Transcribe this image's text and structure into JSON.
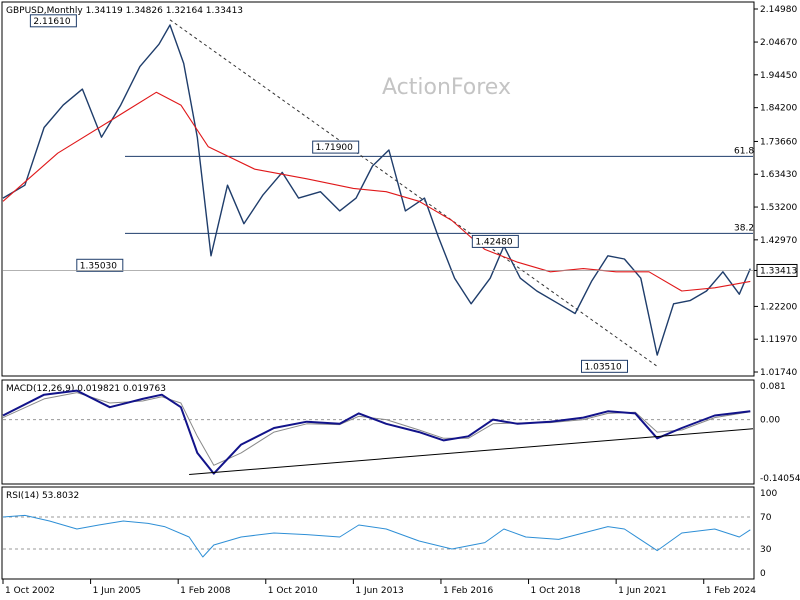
{
  "header": {
    "main": "GBPUSD,Monthly  1.34119 1.34826 1.32164 1.33413",
    "macd": "MACD(12,26,9) 0.019821 0.019763",
    "rsi": "RSI(14) 53.8032"
  },
  "watermark": "ActionForex",
  "colors": {
    "price": "#1f3d6b",
    "ma": "#e0181a",
    "macd": "#12138a",
    "signal": "#8a8a8a",
    "rsi": "#2e8fd6",
    "fib_line": "#1f3d6b",
    "box_border": "#1f3d6b"
  },
  "chart_data": [
    {
      "type": "line",
      "panel": "price",
      "title": "GBPUSD,Monthly",
      "ohlc_last": {
        "open": "1.34119",
        "high": "1.34826",
        "low": "1.32164",
        "close": "1.33413"
      },
      "ylim": [
        1.0174,
        2.1498
      ],
      "y_ticks": [
        "2.14980",
        "2.04670",
        "1.94450",
        "1.84200",
        "1.73660",
        "1.63430",
        "1.53200",
        "1.42970",
        "1.33413",
        "1.22200",
        "1.11970",
        "1.01740"
      ],
      "y_tick_values": [
        2.1498,
        2.0467,
        1.9445,
        1.842,
        1.7366,
        1.6343,
        1.532,
        1.4297,
        1.3341,
        1.222,
        1.1197,
        1.0174
      ],
      "current_price": "1.33413",
      "series": [
        {
          "name": "",
          "x": [
            "2002-10",
            "2003-06",
            "2004-01",
            "2004-08",
            "2005-03",
            "2005-10",
            "2006-05",
            "2006-12",
            "2007-07",
            "2007-11",
            "2008-04",
            "2008-09",
            "2009-02",
            "2009-08",
            "2010-02",
            "2010-09",
            "2011-04",
            "2011-10",
            "2012-06",
            "2013-01",
            "2013-07",
            "2014-01",
            "2014-07",
            "2015-01",
            "2015-08",
            "2016-01",
            "2016-07",
            "2017-01",
            "2017-08",
            "2018-01",
            "2018-07",
            "2019-01",
            "2019-09",
            "2020-03",
            "2020-09",
            "2021-03",
            "2021-09",
            "2022-03",
            "2022-09",
            "2023-03",
            "2023-09",
            "2024-03",
            "2024-09",
            "2025-03",
            "2025-07"
          ],
          "values": [
            1.56,
            1.6,
            1.78,
            1.85,
            1.9,
            1.75,
            1.85,
            1.97,
            2.04,
            2.1,
            1.98,
            1.75,
            1.38,
            1.6,
            1.48,
            1.57,
            1.64,
            1.56,
            1.58,
            1.52,
            1.56,
            1.66,
            1.71,
            1.52,
            1.56,
            1.44,
            1.31,
            1.23,
            1.31,
            1.41,
            1.31,
            1.27,
            1.23,
            1.2,
            1.3,
            1.38,
            1.37,
            1.31,
            1.07,
            1.23,
            1.24,
            1.27,
            1.33,
            1.26,
            1.34
          ]
        },
        {
          "name": "",
          "x": [
            "2002-10",
            "2004-06",
            "2006-01",
            "2007-06",
            "2008-03",
            "2009-01",
            "2010-06",
            "2012-01",
            "2013-06",
            "2014-06",
            "2015-06",
            "2016-06",
            "2017-06",
            "2018-06",
            "2019-06",
            "2020-06",
            "2021-06",
            "2022-06",
            "2023-06",
            "2024-06",
            "2025-07"
          ],
          "values": [
            1.55,
            1.7,
            1.8,
            1.89,
            1.85,
            1.72,
            1.65,
            1.62,
            1.59,
            1.58,
            1.55,
            1.49,
            1.4,
            1.36,
            1.33,
            1.34,
            1.33,
            1.33,
            1.27,
            1.28,
            1.3
          ]
        }
      ],
      "annotations": [
        "2.11610",
        "1.35030",
        "1.71900",
        "1.42480",
        "1.03510"
      ],
      "fib_levels": [
        {
          "label": "61.8",
          "value": 1.69
        },
        {
          "label": "38.2",
          "value": 1.4499
        }
      ]
    },
    {
      "type": "line",
      "panel": "macd",
      "title": "MACD(12,26,9) 0.019821 0.019763",
      "ylim": [
        -0.1405,
        0.081
      ],
      "y_ticks": [
        "0.081",
        "0.00",
        "-0.140543"
      ],
      "zero_line": 0.0,
      "series": [
        {
          "name": "",
          "x": [
            "2002-10",
            "2004-01",
            "2005-01",
            "2006-01",
            "2007-01",
            "2007-08",
            "2008-03",
            "2008-09",
            "2009-03",
            "2010-01",
            "2011-01",
            "2012-01",
            "2013-01",
            "2013-08",
            "2014-06",
            "2015-06",
            "2016-03",
            "2016-12",
            "2017-09",
            "2018-06",
            "2019-06",
            "2020-06",
            "2021-03",
            "2022-01",
            "2022-09",
            "2023-06",
            "2024-06",
            "2025-07"
          ],
          "values": [
            0.01,
            0.06,
            0.07,
            0.03,
            0.05,
            0.06,
            0.03,
            -0.08,
            -0.13,
            -0.06,
            -0.02,
            -0.005,
            -0.01,
            0.015,
            -0.01,
            -0.03,
            -0.05,
            -0.04,
            0.0,
            -0.01,
            -0.005,
            0.005,
            0.02,
            0.015,
            -0.045,
            -0.02,
            0.01,
            0.02
          ]
        },
        {
          "name": "",
          "x": [
            "2002-10",
            "2004-01",
            "2005-01",
            "2006-01",
            "2007-01",
            "2007-08",
            "2008-03",
            "2008-09",
            "2009-03",
            "2010-01",
            "2011-01",
            "2012-01",
            "2013-01",
            "2013-08",
            "2014-06",
            "2015-06",
            "2016-03",
            "2016-12",
            "2017-09",
            "2018-06",
            "2019-06",
            "2020-06",
            "2021-03",
            "2022-01",
            "2022-09",
            "2023-06",
            "2024-06",
            "2025-07"
          ],
          "values": [
            0.005,
            0.05,
            0.065,
            0.04,
            0.045,
            0.055,
            0.04,
            -0.04,
            -0.11,
            -0.08,
            -0.03,
            -0.01,
            -0.012,
            0.008,
            0.0,
            -0.025,
            -0.045,
            -0.045,
            -0.01,
            -0.008,
            -0.007,
            0.0,
            0.015,
            0.018,
            -0.03,
            -0.025,
            0.005,
            0.019
          ]
        }
      ],
      "trendline": {
        "x": [
          "2008-06",
          "2025-08"
        ],
        "values": [
          -0.132,
          -0.022
        ]
      }
    },
    {
      "type": "line",
      "panel": "rsi",
      "title": "RSI(14) 53.8032",
      "ylim": [
        0,
        100
      ],
      "y_ticks": [
        "100",
        "70",
        "30",
        "0"
      ],
      "levels": [
        70,
        30
      ],
      "series": [
        {
          "name": "",
          "x": [
            "2002-10",
            "2003-06",
            "2004-03",
            "2005-01",
            "2005-09",
            "2006-06",
            "2007-03",
            "2007-09",
            "2008-06",
            "2008-11",
            "2009-03",
            "2010-01",
            "2011-01",
            "2012-01",
            "2013-01",
            "2013-08",
            "2014-06",
            "2015-06",
            "2016-06",
            "2017-06",
            "2018-01",
            "2018-09",
            "2019-09",
            "2020-06",
            "2021-03",
            "2021-09",
            "2022-09",
            "2023-06",
            "2024-06",
            "2025-03",
            "2025-07"
          ],
          "values": [
            70,
            72,
            65,
            55,
            60,
            65,
            62,
            58,
            45,
            20,
            35,
            45,
            50,
            48,
            45,
            60,
            55,
            40,
            30,
            38,
            55,
            45,
            42,
            50,
            58,
            55,
            28,
            50,
            55,
            45,
            54
          ]
        }
      ]
    }
  ],
  "x_axis": {
    "ticks": [
      "1 Oct 2002",
      "1 Jun 2005",
      "1 Feb 2008",
      "1 Oct 2010",
      "1 Jun 2013",
      "1 Feb 2016",
      "1 Oct 2018",
      "1 Jun 2021",
      "1 Feb 2024"
    ],
    "tick_dates": [
      "2002-10",
      "2005-06",
      "2008-02",
      "2010-10",
      "2013-06",
      "2016-02",
      "2018-10",
      "2021-06",
      "2024-02"
    ],
    "range": [
      "2002-10",
      "2025-08"
    ]
  }
}
